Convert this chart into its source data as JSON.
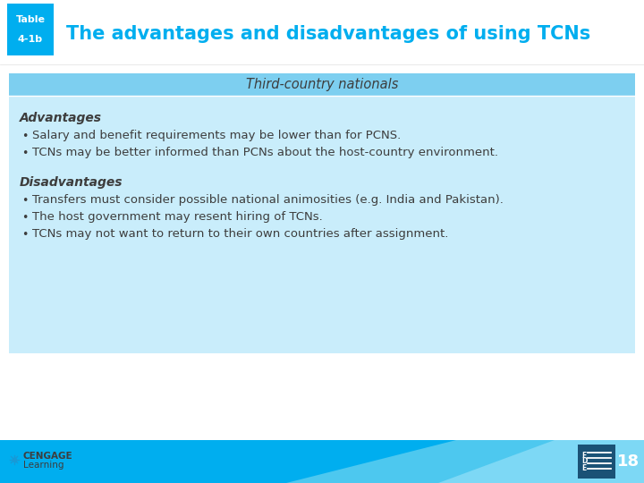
{
  "title": "The advantages and disadvantages of using TCNs",
  "table_label_line1": "Table",
  "table_label_line2": "4-1b",
  "table_label_bg": "#00AEEF",
  "title_color": "#00AEEF",
  "header_text": "Third-country nationals",
  "header_bg": "#7DCFF0",
  "content_bg": "#C9EDFB",
  "section1_label": "Advantages",
  "section1_bullets": [
    "Salary and benefit requirements may be lower than for PCNS.",
    "TCNs may be better informed than PCNs about the host-country environment."
  ],
  "section2_label": "Disadvantages",
  "section2_bullets": [
    "Transfers must consider possible national animosities (e.g. India and Pakistan).",
    "The host government may resent hiring of TCNs.",
    "TCNs may not want to return to their own countries after assignment."
  ],
  "footer_bg": "#00AEEF",
  "footer_accent1": "#4DC8EF",
  "footer_accent2": "#7DD8F5",
  "footer_text": "18",
  "footer_text_color": "#ffffff",
  "page_icon_bg": "#1A5276",
  "cengage_text_line1": "CENGAGE",
  "cengage_text_line2": "Learning",
  "page_bg": "#ffffff",
  "text_color": "#3D3D3D",
  "bullet_color": "#3D3D3D"
}
